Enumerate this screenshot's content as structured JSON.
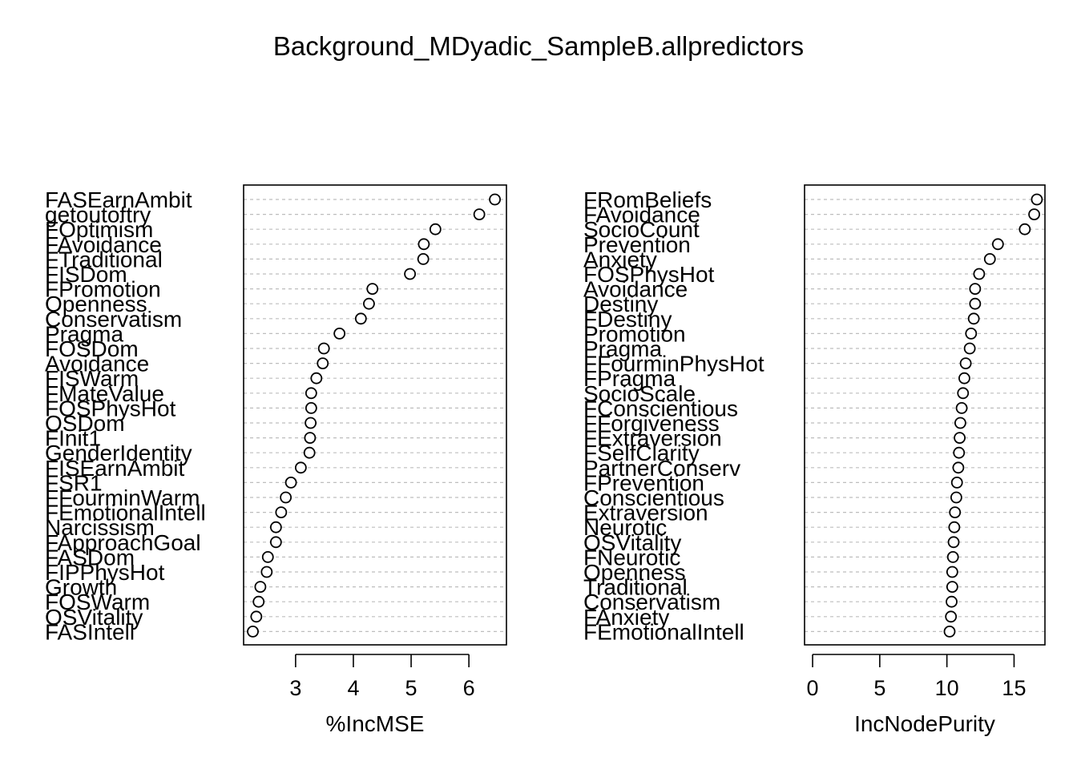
{
  "chart_data": {
    "title": "Background_MDyadic_SampleB.allpredictors",
    "panels": [
      {
        "type": "scatter",
        "xlabel": "%IncMSE",
        "xlim": [
          2.1,
          6.65
        ],
        "xticks": [
          3,
          4,
          5,
          6
        ],
        "grid": true,
        "labels": [
          "FASEarnAmbit",
          "getoutoftry",
          "FOptimism",
          "FAvoidance",
          "FTraditional",
          "FISDom",
          "FPromotion",
          "Openness",
          "Conservatism",
          "Pragma",
          "FOSDom",
          "Avoidance",
          "FISWarm",
          "FMateValue",
          "FOSPhysHot",
          "OSDom",
          "FInit1",
          "GenderIdentity",
          "FISEarnAmbit",
          "FSR1",
          "FFourminWarm",
          "FEmotionalIntell",
          "Narcissism",
          "FApproachGoal",
          "FASDom",
          "FIPPhysHot",
          "Growth",
          "FOSWarm",
          "OSVitality",
          "FASIntell"
        ],
        "values": [
          6.45,
          6.18,
          5.42,
          5.22,
          5.21,
          4.98,
          4.33,
          4.27,
          4.13,
          3.76,
          3.49,
          3.47,
          3.36,
          3.27,
          3.27,
          3.26,
          3.25,
          3.24,
          3.09,
          2.92,
          2.83,
          2.75,
          2.66,
          2.66,
          2.52,
          2.5,
          2.39,
          2.36,
          2.32,
          2.26
        ]
      },
      {
        "type": "scatter",
        "xlabel": "IncNodePurity",
        "xlim": [
          -0.6,
          17.3
        ],
        "xticks": [
          0,
          5,
          10,
          15
        ],
        "grid": true,
        "labels": [
          "FRomBeliefs",
          "FAvoidance",
          "SocioCount",
          "Prevention",
          "Anxiety",
          "FOSPhysHot",
          "Avoidance",
          "Destiny",
          "FDestiny",
          "Promotion",
          "Pragma",
          "FFourminPhysHot",
          "FPragma",
          "SocioScale",
          "FConscientious",
          "FForgiveness",
          "FExtraversion",
          "FSelfClarity",
          "PartnerConserv",
          "FPrevention",
          "Conscientious",
          "Extraversion",
          "Neurotic",
          "OSVitality",
          "FNeurotic",
          "Openness",
          "Traditional",
          "Conservatism",
          "FAnxiety",
          "FEmotionalIntell"
        ],
        "values": [
          16.7,
          16.5,
          15.8,
          13.8,
          13.2,
          12.4,
          12.1,
          12.1,
          12.0,
          11.8,
          11.7,
          11.4,
          11.3,
          11.2,
          11.1,
          11.0,
          10.95,
          10.9,
          10.85,
          10.75,
          10.7,
          10.6,
          10.55,
          10.5,
          10.45,
          10.4,
          10.4,
          10.35,
          10.3,
          10.2
        ]
      }
    ]
  }
}
